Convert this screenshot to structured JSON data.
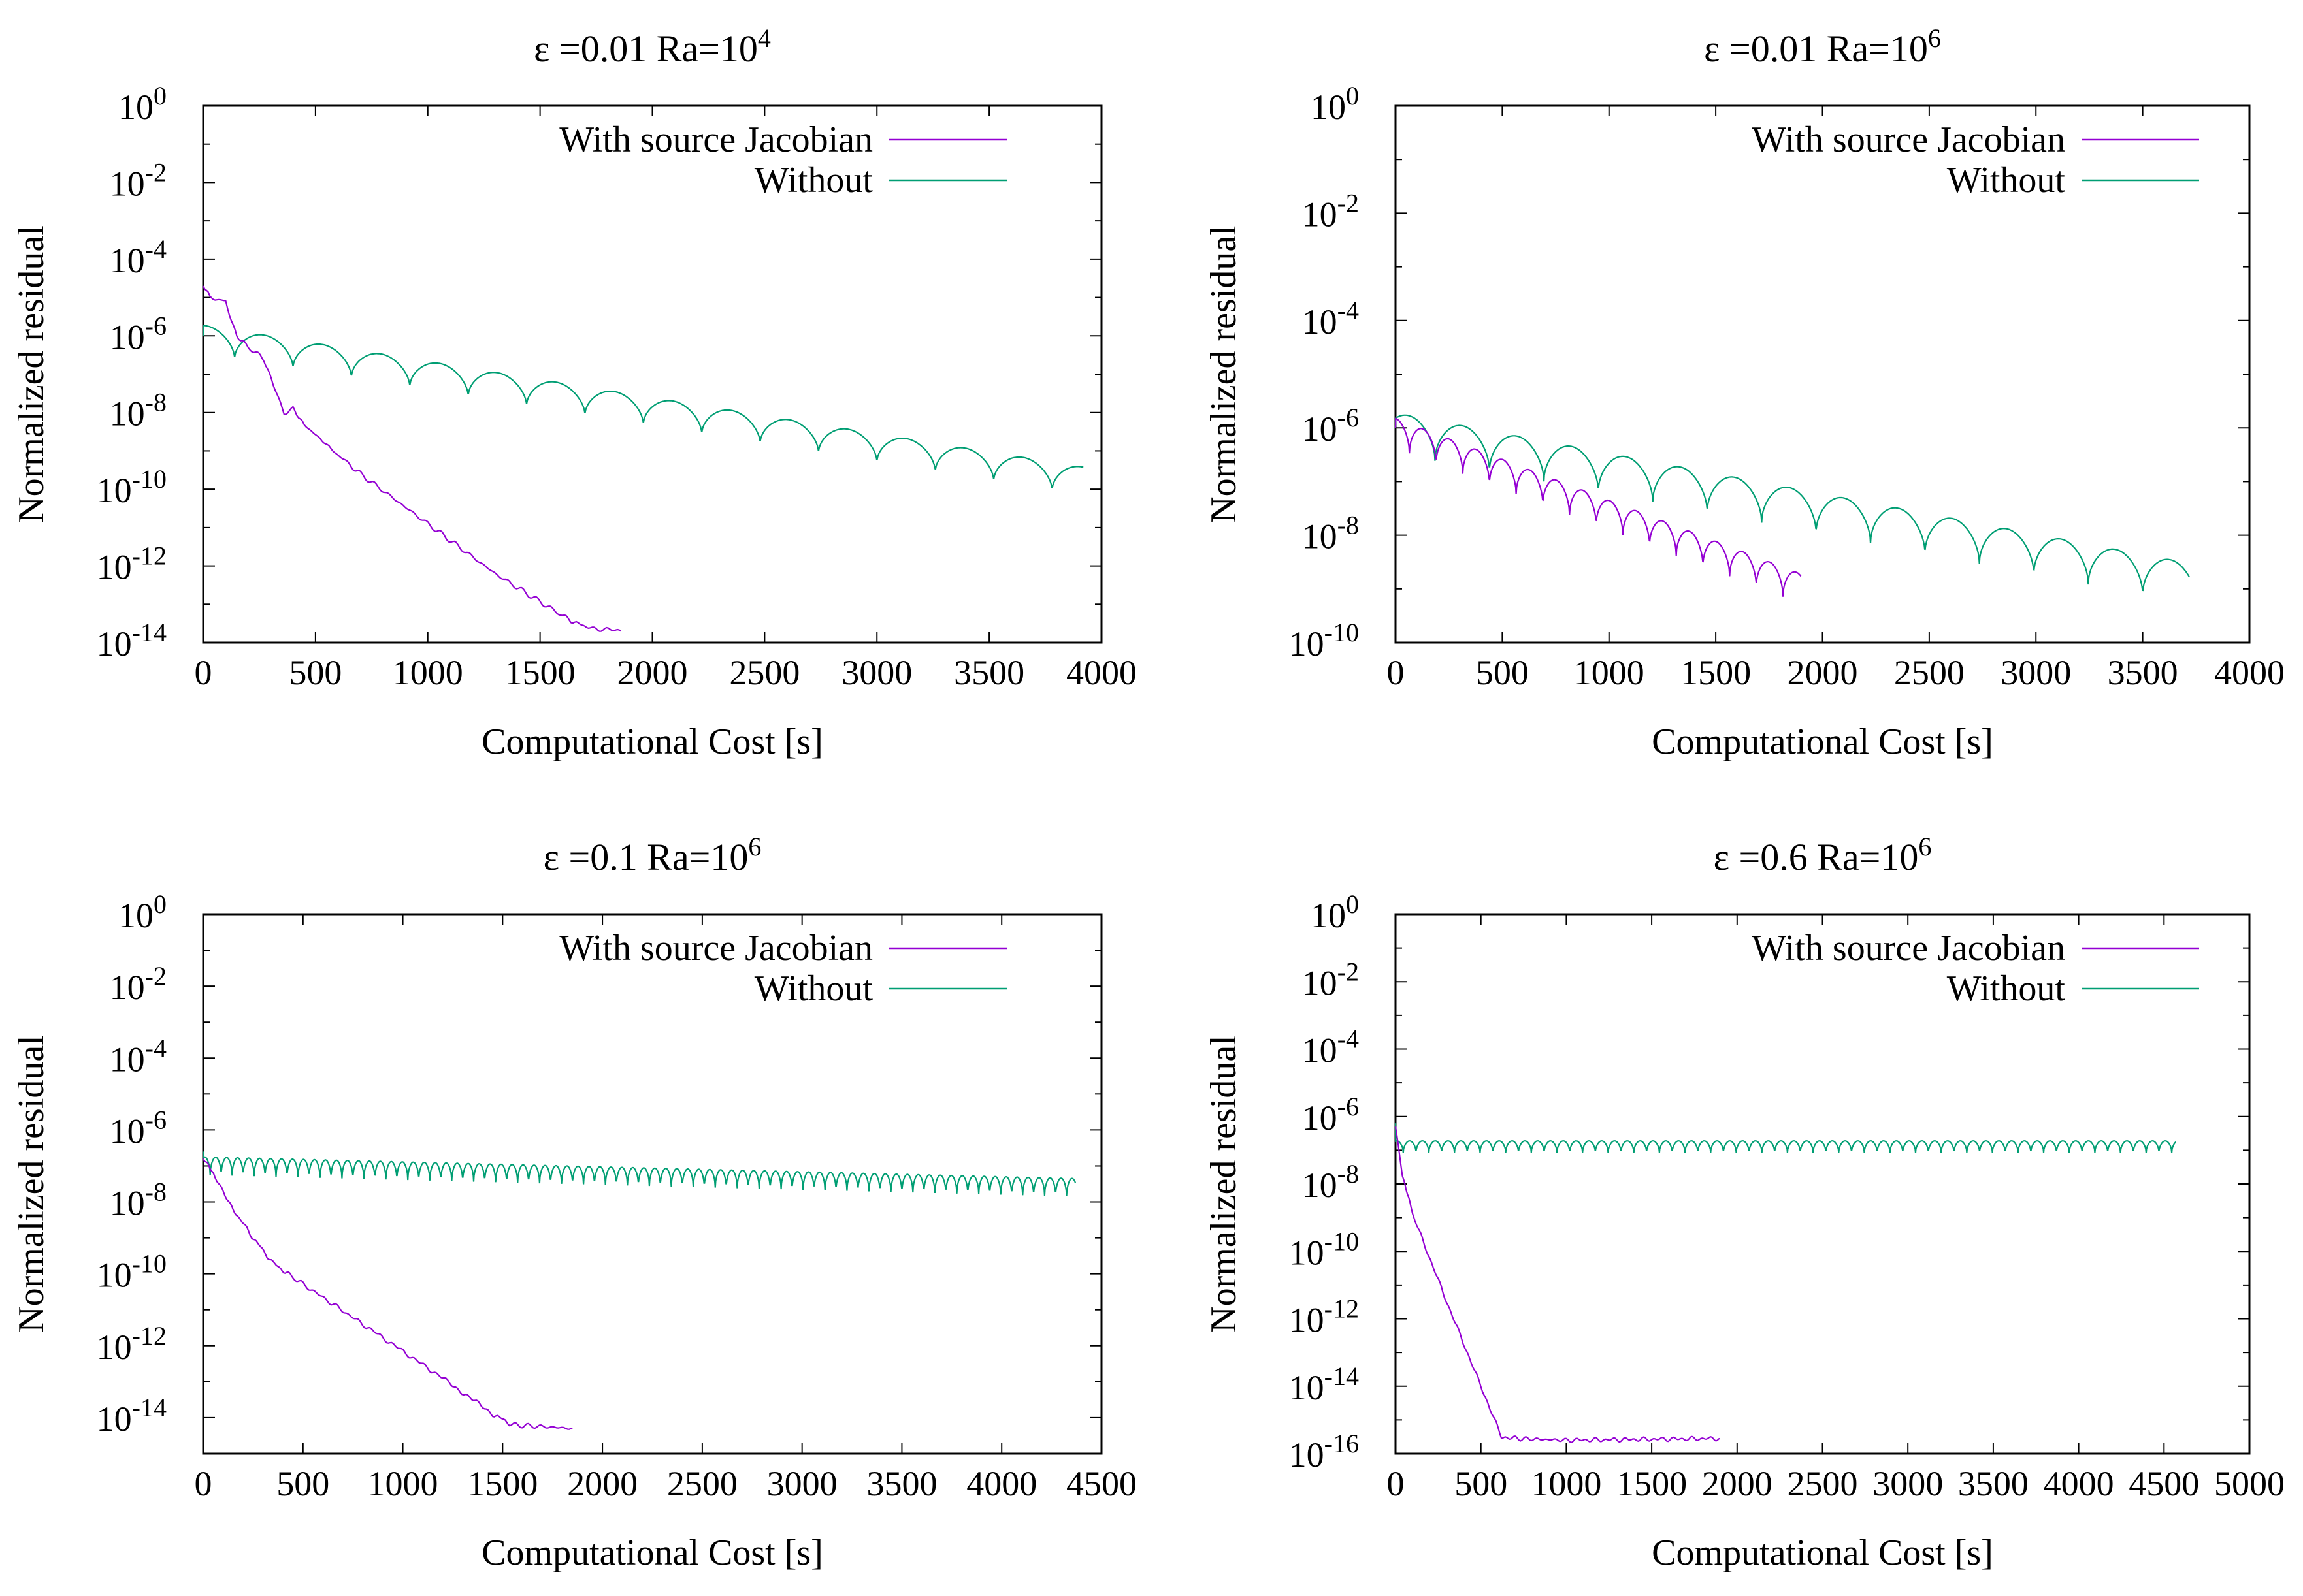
{
  "chart_data": [
    {
      "type": "line",
      "title": {
        "prefix": "ε =0.01  Ra=10",
        "exp": "4"
      },
      "xlabel": "Computational Cost [s]",
      "ylabel": "Normalized residual",
      "xlim": [
        0,
        4000
      ],
      "xticks": [
        "0",
        "500",
        "1000",
        "1500",
        "2000",
        "2500",
        "3000",
        "3500",
        "4000"
      ],
      "yscale": "log",
      "ylim_exp": [
        -14,
        0
      ],
      "yticks": [
        {
          "base": "10",
          "exp": "0"
        },
        {
          "base": "10",
          "exp": "-2"
        },
        {
          "base": "10",
          "exp": "-4"
        },
        {
          "base": "10",
          "exp": "-6"
        },
        {
          "base": "10",
          "exp": "-8"
        },
        {
          "base": "10",
          "exp": "-10"
        },
        {
          "base": "10",
          "exp": "-12"
        },
        {
          "base": "10",
          "exp": "-14"
        }
      ],
      "legend": [
        "With source Jacobian",
        "Without"
      ],
      "series": [
        {
          "name": "With source Jacobian",
          "color": "#9400d3",
          "model": "curve",
          "points": [
            [
              0,
              -4.7
            ],
            [
              30,
              -5.0
            ],
            [
              100,
              -5.1
            ],
            [
              150,
              -6.0
            ],
            [
              200,
              -6.3
            ],
            [
              270,
              -6.6
            ],
            [
              320,
              -7.4
            ],
            [
              360,
              -8.0
            ],
            [
              400,
              -7.9
            ],
            [
              450,
              -8.3
            ],
            [
              520,
              -8.7
            ],
            [
              560,
              -8.9
            ],
            [
              700,
              -9.6
            ],
            [
              1000,
              -10.9
            ],
            [
              1300,
              -12.2
            ],
            [
              1600,
              -13.3
            ],
            [
              1700,
              -13.6
            ],
            [
              1860,
              -13.7
            ]
          ]
        },
        {
          "name": "Without",
          "color": "#009e73",
          "model": "oscill",
          "start": [
            0,
            -6.0
          ],
          "startLevel": -6.1,
          "endLevel": -9.8,
          "end": 3920,
          "period": 260,
          "amp": 0.75,
          "phase": 120
        }
      ]
    },
    {
      "type": "line",
      "title": {
        "prefix": "ε =0.01  Ra=10",
        "exp": "6"
      },
      "xlabel": "Computational Cost [s]",
      "ylabel": "Normalized residual",
      "xlim": [
        0,
        4000
      ],
      "xticks": [
        "0",
        "500",
        "1000",
        "1500",
        "2000",
        "2500",
        "3000",
        "3500",
        "4000"
      ],
      "yscale": "log",
      "ylim_exp": [
        -10,
        0
      ],
      "yticks": [
        {
          "base": "10",
          "exp": "0"
        },
        {
          "base": "10",
          "exp": "-2"
        },
        {
          "base": "10",
          "exp": "-4"
        },
        {
          "base": "10",
          "exp": "-6"
        },
        {
          "base": "10",
          "exp": "-8"
        },
        {
          "base": "10",
          "exp": "-10"
        }
      ],
      "legend": [
        "With source Jacobian",
        "Without"
      ],
      "series": [
        {
          "name": "With source Jacobian",
          "color": "#9400d3",
          "model": "oscill",
          "start": [
            0,
            -6.0
          ],
          "startLevel": -6.1,
          "endLevel": -9.0,
          "end": 1900,
          "period": 125,
          "amp": 0.55,
          "phase": 60
        },
        {
          "name": "Without",
          "color": "#009e73",
          "model": "oscill",
          "start": [
            0,
            -6.0
          ],
          "startLevel": -6.1,
          "endLevel": -8.9,
          "end": 3720,
          "period": 255,
          "amp": 0.75,
          "phase": 70
        }
      ]
    },
    {
      "type": "line",
      "title": {
        "prefix": "ε =0.1  Ra=10",
        "exp": "6"
      },
      "xlabel": "Computational Cost [s]",
      "ylabel": "Normalized residual",
      "xlim": [
        0,
        4500
      ],
      "xticks": [
        "0",
        "500",
        "1000",
        "1500",
        "2000",
        "2500",
        "3000",
        "3500",
        "4000",
        "4500"
      ],
      "yscale": "log",
      "ylim_exp": [
        -15,
        0
      ],
      "yticks": [
        {
          "base": "10",
          "exp": "0"
        },
        {
          "base": "10",
          "exp": "-2"
        },
        {
          "base": "10",
          "exp": "-4"
        },
        {
          "base": "10",
          "exp": "-6"
        },
        {
          "base": "10",
          "exp": "-8"
        },
        {
          "base": "10",
          "exp": "-10"
        },
        {
          "base": "10",
          "exp": "-12"
        },
        {
          "base": "10",
          "exp": "-14"
        }
      ],
      "legend": [
        "With source Jacobian",
        "Without"
      ],
      "series": [
        {
          "name": "With source Jacobian",
          "color": "#9400d3",
          "model": "curve",
          "points": [
            [
              0,
              -6.8
            ],
            [
              60,
              -7.3
            ],
            [
              150,
              -8.2
            ],
            [
              250,
              -9.0
            ],
            [
              350,
              -9.7
            ],
            [
              450,
              -10.1
            ],
            [
              800,
              -11.4
            ],
            [
              1200,
              -12.9
            ],
            [
              1450,
              -13.9
            ],
            [
              1550,
              -14.2
            ],
            [
              1850,
              -14.3
            ]
          ]
        },
        {
          "name": "Without",
          "color": "#009e73",
          "model": "oscill",
          "start": [
            0,
            -6.6
          ],
          "startLevel": -7.0,
          "endLevel": -7.6,
          "end": 4370,
          "period": 55,
          "amp": 0.5,
          "phase": 20
        }
      ]
    },
    {
      "type": "line",
      "title": {
        "prefix": "ε =0.6  Ra=10",
        "exp": "6"
      },
      "xlabel": "Computational Cost [s]",
      "ylabel": "Normalized residual",
      "xlim": [
        0,
        5000
      ],
      "xticks": [
        "0",
        "500",
        "1000",
        "1500",
        "2000",
        "2500",
        "3000",
        "3500",
        "4000",
        "4500",
        "5000"
      ],
      "yscale": "log",
      "ylim_exp": [
        -16,
        0
      ],
      "yticks": [
        {
          "base": "10",
          "exp": "0"
        },
        {
          "base": "10",
          "exp": "-2"
        },
        {
          "base": "10",
          "exp": "-4"
        },
        {
          "base": "10",
          "exp": "-6"
        },
        {
          "base": "10",
          "exp": "-8"
        },
        {
          "base": "10",
          "exp": "-10"
        },
        {
          "base": "10",
          "exp": "-12"
        },
        {
          "base": "10",
          "exp": "-14"
        },
        {
          "base": "10",
          "exp": "-16"
        }
      ],
      "legend": [
        "With source Jacobian",
        "Without"
      ],
      "series": [
        {
          "name": "With source Jacobian",
          "color": "#9400d3",
          "model": "curve",
          "points": [
            [
              0,
              -6.3
            ],
            [
              40,
              -7.7
            ],
            [
              100,
              -8.9
            ],
            [
              300,
              -11.5
            ],
            [
              500,
              -14.0
            ],
            [
              620,
              -15.5
            ],
            [
              700,
              -15.55
            ],
            [
              1000,
              -15.6
            ],
            [
              1900,
              -15.55
            ]
          ]
        },
        {
          "name": "Without",
          "color": "#009e73",
          "model": "oscill",
          "start": [
            0,
            -6.2
          ],
          "startLevel": -6.9,
          "endLevel": -6.9,
          "end": 4570,
          "period": 75,
          "amp": 0.35,
          "phase": 30
        }
      ]
    }
  ]
}
